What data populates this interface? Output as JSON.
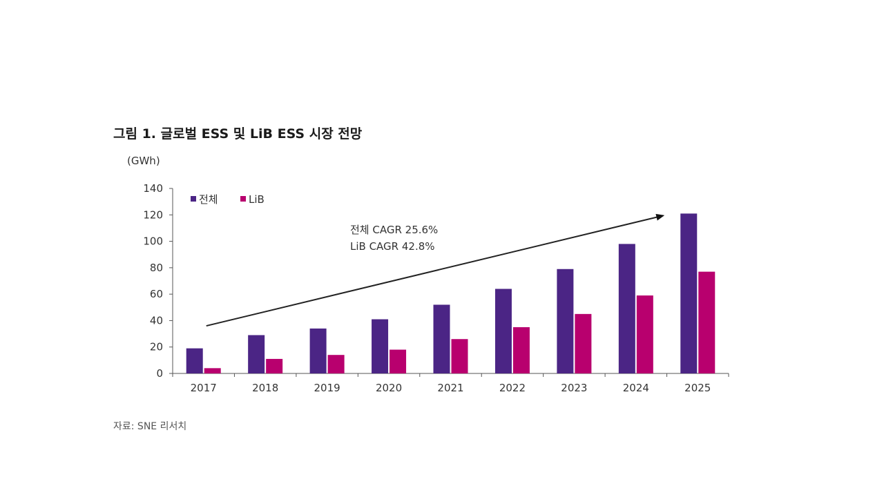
{
  "figure": {
    "title": "그림 1.  글로벌 ESS 및 LiB ESS 시장 전망",
    "unit": "(GWh)",
    "source": "자료: SNE 리서치"
  },
  "colors": {
    "total": "#4b2585",
    "lib": "#b8006e",
    "axis": "#555555",
    "text": "#333333"
  },
  "chart_data": {
    "type": "bar",
    "title": "그림 1.  글로벌 ESS 및 LiB ESS 시장 전망",
    "ylabel": "(GWh)",
    "xlabel": "",
    "ylim": [
      0,
      140
    ],
    "yticks": [
      0,
      20,
      40,
      60,
      80,
      100,
      120,
      140
    ],
    "grid": false,
    "legend_position": "top-left",
    "categories": [
      "2017",
      "2018",
      "2019",
      "2020",
      "2021",
      "2022",
      "2023",
      "2024",
      "2025"
    ],
    "series": [
      {
        "name": "전체",
        "color": "#4b2585",
        "values": [
          19,
          29,
          34,
          41,
          52,
          64,
          79,
          98,
          121
        ]
      },
      {
        "name": "LiB",
        "color": "#b8006e",
        "values": [
          4,
          11,
          14,
          18,
          26,
          35,
          45,
          59,
          77
        ]
      }
    ],
    "annotation": {
      "lines": [
        "전체 CAGR 25.6%",
        "LiB CAGR 42.8%"
      ],
      "arrow_from": {
        "category": "2017",
        "value": 36
      },
      "arrow_to": {
        "category": "2025",
        "value": 121
      }
    }
  }
}
